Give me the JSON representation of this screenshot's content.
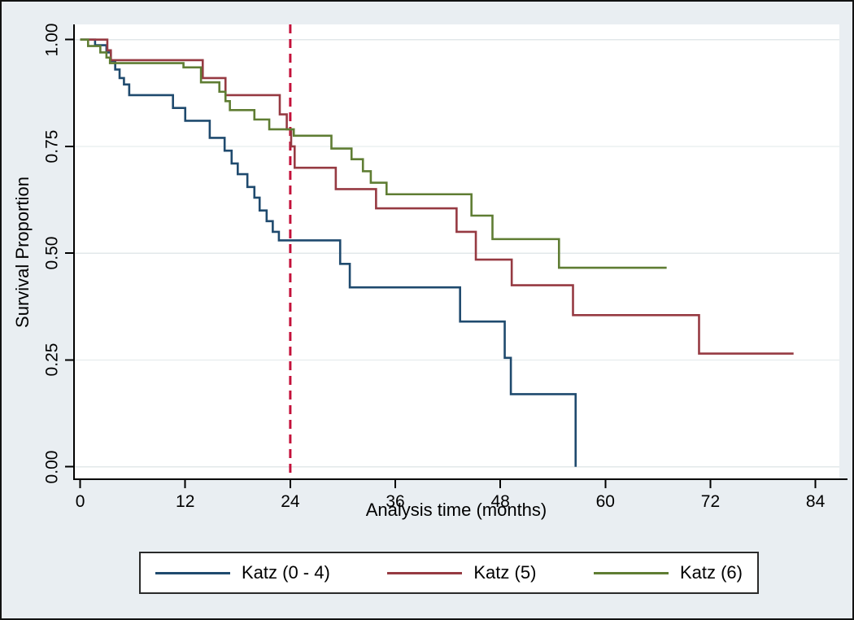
{
  "chart_data": {
    "type": "line",
    "subtype": "kaplan-meier-step",
    "title": "",
    "xlabel": "Analysis time (months)",
    "ylabel": "Survival Proportion",
    "xlim": [
      0,
      84
    ],
    "ylim": [
      0.0,
      1.0
    ],
    "xticks": [
      0,
      12,
      24,
      36,
      48,
      60,
      72,
      84
    ],
    "yticks": [
      1.0,
      0.75,
      0.5,
      0.25,
      0.0
    ],
    "ytick_labels": [
      "1.00",
      "0.75",
      "0.50",
      "0.25",
      "0.00"
    ],
    "grid": "horizontal",
    "legend_position": "bottom",
    "reference_line": {
      "x": 24,
      "orientation": "vertical",
      "style": "dashed",
      "color": "#c4113b"
    },
    "series": [
      {
        "name": "Katz (0 - 4)",
        "color": "#1f4a6e",
        "points": [
          [
            0,
            1.0
          ],
          [
            1.7,
            0.987
          ],
          [
            3.0,
            0.97
          ],
          [
            3.5,
            0.95
          ],
          [
            4.0,
            0.93
          ],
          [
            4.5,
            0.91
          ],
          [
            5.0,
            0.895
          ],
          [
            5.6,
            0.87
          ],
          [
            10.6,
            0.84
          ],
          [
            12.0,
            0.81
          ],
          [
            14.8,
            0.77
          ],
          [
            16.5,
            0.74
          ],
          [
            17.3,
            0.71
          ],
          [
            18.0,
            0.685
          ],
          [
            19.1,
            0.655
          ],
          [
            19.9,
            0.63
          ],
          [
            20.5,
            0.6
          ],
          [
            21.3,
            0.575
          ],
          [
            22.0,
            0.55
          ],
          [
            22.7,
            0.53
          ],
          [
            29.7,
            0.475
          ],
          [
            30.8,
            0.42
          ],
          [
            43.4,
            0.34
          ],
          [
            48.5,
            0.255
          ],
          [
            49.2,
            0.17
          ],
          [
            56.6,
            0.0
          ]
        ]
      },
      {
        "name": "Katz (5)",
        "color": "#963a42",
        "points": [
          [
            0,
            1.0
          ],
          [
            3.1,
            0.975
          ],
          [
            3.5,
            0.952
          ],
          [
            14.0,
            0.91
          ],
          [
            16.6,
            0.87
          ],
          [
            22.8,
            0.825
          ],
          [
            23.6,
            0.79
          ],
          [
            24.1,
            0.75
          ],
          [
            24.5,
            0.7
          ],
          [
            29.2,
            0.65
          ],
          [
            33.8,
            0.605
          ],
          [
            43.0,
            0.55
          ],
          [
            45.2,
            0.485
          ],
          [
            49.3,
            0.425
          ],
          [
            56.3,
            0.355
          ],
          [
            70.7,
            0.265
          ],
          [
            81.5,
            0.265
          ]
        ]
      },
      {
        "name": "Katz (6)",
        "color": "#5f7d33",
        "points": [
          [
            0,
            1.0
          ],
          [
            0.9,
            0.985
          ],
          [
            2.3,
            0.97
          ],
          [
            3.0,
            0.958
          ],
          [
            3.4,
            0.945
          ],
          [
            11.8,
            0.935
          ],
          [
            13.8,
            0.9
          ],
          [
            15.9,
            0.878
          ],
          [
            16.6,
            0.856
          ],
          [
            17.1,
            0.835
          ],
          [
            19.9,
            0.813
          ],
          [
            21.6,
            0.79
          ],
          [
            24.4,
            0.775
          ],
          [
            28.7,
            0.745
          ],
          [
            31.0,
            0.72
          ],
          [
            32.3,
            0.692
          ],
          [
            33.2,
            0.665
          ],
          [
            35.0,
            0.638
          ],
          [
            44.7,
            0.588
          ],
          [
            47.1,
            0.533
          ],
          [
            54.7,
            0.466
          ],
          [
            67.0,
            0.466
          ]
        ]
      }
    ]
  },
  "colors": {
    "canvas_background": "#e9eef2",
    "plot_background": "#ffffff",
    "gridline": "#e2e8ea",
    "axis": "#000000",
    "border": "#121212"
  }
}
